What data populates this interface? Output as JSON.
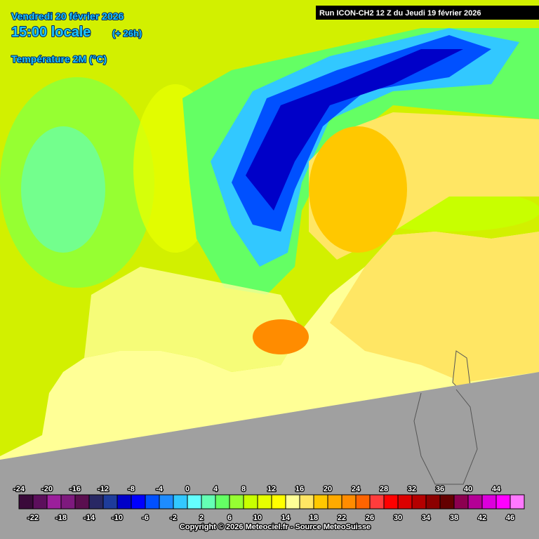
{
  "header": {
    "date": "Vendredi 20 février 2026",
    "time": "15:00 locale",
    "offset": "(+ 26h)",
    "variable": "Température 2M (°C)",
    "run": "Run ICON-CH2 12 Z du Jeudi 19 février 2026"
  },
  "legend": {
    "values": [
      -24,
      -22,
      -20,
      -18,
      -16,
      -14,
      -12,
      -10,
      -8,
      -6,
      -4,
      -2,
      0,
      2,
      4,
      6,
      8,
      10,
      12,
      14,
      16,
      18,
      20,
      22,
      24,
      26,
      28,
      30,
      32,
      34,
      36,
      38,
      40,
      42,
      44,
      46
    ],
    "colors": [
      "#3a0a3a",
      "#5c0f5c",
      "#9b1f9b",
      "#7e1a7e",
      "#5a0f4f",
      "#282864",
      "#1e3c9b",
      "#0000c8",
      "#0000ff",
      "#0050ff",
      "#1e8cff",
      "#32c8ff",
      "#64ffff",
      "#64ffb4",
      "#64ff64",
      "#96ff32",
      "#c8ff00",
      "#e6ff00",
      "#ffff00",
      "#ffff96",
      "#ffe664",
      "#ffc800",
      "#ffaa00",
      "#ff8c00",
      "#ff6400",
      "#ff3c3c",
      "#ff0000",
      "#dc0000",
      "#b40000",
      "#8c0000",
      "#640000",
      "#8c0050",
      "#b40096",
      "#dc00dc",
      "#ff00ff",
      "#ff78ff"
    ]
  },
  "footer": "Copyright © 2026 Meteociel.fr - Source MeteoSuisse"
}
